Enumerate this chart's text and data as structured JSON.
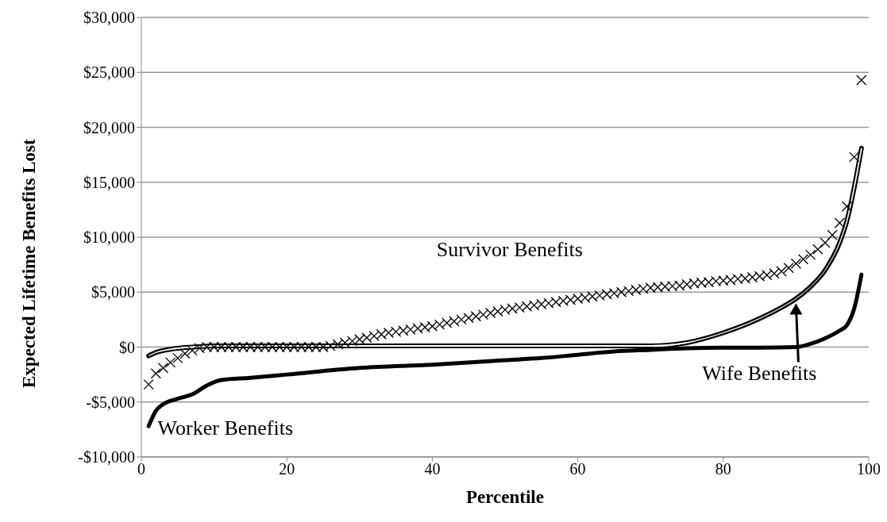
{
  "chart_data": {
    "type": "line",
    "xlabel": "Percentile",
    "ylabel": "Expected Lifetime Benefits Lost",
    "xlim": [
      0,
      100
    ],
    "xticks": [
      0,
      20,
      40,
      60,
      80,
      100
    ],
    "ylim": [
      -10000,
      30000
    ],
    "yticks": [
      {
        "value": -10000,
        "label": "-$10,000"
      },
      {
        "value": -5000,
        "label": "-$5,000"
      },
      {
        "value": 0,
        "label": "$0"
      },
      {
        "value": 5000,
        "label": "$5,000"
      },
      {
        "value": 10000,
        "label": "$10,000"
      },
      {
        "value": 15000,
        "label": "$15,000"
      },
      {
        "value": 20000,
        "label": "$20,000"
      },
      {
        "value": 25000,
        "label": "$25,000"
      },
      {
        "value": 30000,
        "label": "$30,000"
      }
    ],
    "grid": "y",
    "legend": false,
    "series": [
      {
        "name": "Survivor Benefits",
        "type": "scatter",
        "marker": "cross",
        "color": "#000000",
        "x": [
          1,
          2,
          3,
          4,
          5,
          6,
          7,
          8,
          9,
          10,
          11,
          12,
          13,
          14,
          15,
          16,
          17,
          18,
          19,
          20,
          21,
          22,
          23,
          24,
          25,
          26,
          27,
          28,
          29,
          30,
          31,
          32,
          33,
          34,
          35,
          36,
          37,
          38,
          39,
          40,
          41,
          42,
          43,
          44,
          45,
          46,
          47,
          48,
          49,
          50,
          51,
          52,
          53,
          54,
          55,
          56,
          57,
          58,
          59,
          60,
          61,
          62,
          63,
          64,
          65,
          66,
          67,
          68,
          69,
          70,
          71,
          72,
          73,
          74,
          75,
          76,
          77,
          78,
          79,
          80,
          81,
          82,
          83,
          84,
          85,
          86,
          87,
          88,
          89,
          90,
          91,
          92,
          93,
          94,
          95,
          96,
          97,
          98,
          99
        ],
        "values": [
          -3400,
          -2400,
          -1900,
          -1400,
          -1000,
          -600,
          -300,
          -100,
          0,
          0,
          0,
          0,
          0,
          0,
          0,
          0,
          0,
          0,
          0,
          0,
          0,
          0,
          0,
          0,
          0,
          100,
          250,
          400,
          550,
          700,
          850,
          1000,
          1150,
          1300,
          1400,
          1500,
          1600,
          1700,
          1800,
          1900,
          2050,
          2200,
          2350,
          2500,
          2650,
          2800,
          2950,
          3100,
          3250,
          3400,
          3500,
          3600,
          3700,
          3800,
          3900,
          4000,
          4100,
          4200,
          4300,
          4400,
          4500,
          4600,
          4700,
          4800,
          4900,
          5000,
          5100,
          5200,
          5300,
          5400,
          5450,
          5500,
          5550,
          5600,
          5700,
          5800,
          5850,
          5900,
          6000,
          6050,
          6100,
          6200,
          6250,
          6350,
          6450,
          6550,
          6700,
          6900,
          7200,
          7600,
          8000,
          8400,
          8900,
          9500,
          10200,
          11300,
          12800,
          17300,
          24300
        ]
      },
      {
        "name": "Wife Benefits",
        "color": "#000000",
        "x": [
          1,
          2,
          4,
          7,
          10,
          20,
          40,
          60,
          70,
          75,
          80,
          85,
          88,
          90,
          92,
          94,
          96,
          97,
          98,
          99
        ],
        "values": [
          -800,
          -500,
          -200,
          0,
          100,
          100,
          100,
          100,
          100,
          400,
          1300,
          2600,
          3600,
          4400,
          5500,
          7000,
          9500,
          11500,
          14500,
          18100
        ]
      },
      {
        "name": "Worker Benefits",
        "color": "#000000",
        "x": [
          1,
          2,
          3,
          5,
          7,
          9,
          11,
          15,
          20,
          30,
          40,
          50,
          55,
          60,
          65,
          70,
          75,
          80,
          85,
          90,
          92,
          94,
          96,
          97,
          98,
          99
        ],
        "values": [
          -7200,
          -5800,
          -5200,
          -4700,
          -4300,
          -3500,
          -3000,
          -2800,
          -2500,
          -1900,
          -1600,
          -1200,
          -1000,
          -700,
          -400,
          -250,
          -100,
          -50,
          -50,
          0,
          300,
          800,
          1500,
          2000,
          3500,
          6600
        ]
      }
    ]
  }
}
